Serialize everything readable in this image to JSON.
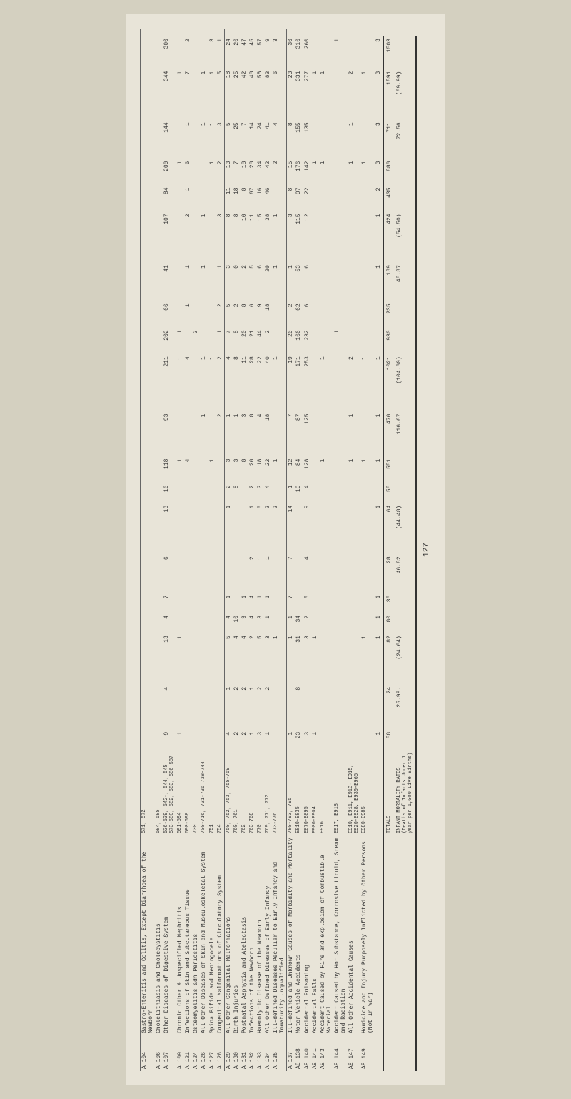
{
  "page_number": "127",
  "rows": [
    {
      "code": "A 104",
      "label": "Gastro-Enteritis and Colitis, Except Diarrhoea of the Newborn",
      "icd": "571, 572",
      "vals": [
        "",
        "",
        "",
        "",
        "",
        "",
        "",
        "",
        "",
        "",
        "",
        "",
        "",
        "",
        "",
        "",
        "",
        "",
        "",
        "",
        ""
      ]
    },
    {
      "code": "A 106",
      "label": "Cholelithiasis and Cholecystitis",
      "icd": "584, 585",
      "vals": [
        "",
        "",
        "",
        "",
        "",
        "",
        "",
        "",
        "",
        "",
        "",
        "",
        "",
        "",
        "",
        "",
        "",
        "",
        "",
        "",
        ""
      ]
    },
    {
      "code": "A 107",
      "label": "Other Diseases of Digestive System",
      "icd": "536-539, 542-, 544, 545 573-580, 582, 583, 586 587",
      "vals": [
        "9",
        "4",
        "13",
        "4",
        "7",
        "6",
        "13",
        "10",
        "118",
        "93",
        "211",
        "202",
        "66",
        "41",
        "107",
        "84",
        "200",
        "144",
        "344",
        "300",
        ""
      ]
    },
    {
      "code": "A 109",
      "label": "Chronic Other & Unspecified Nephritis",
      "icd": "591-594",
      "vals": [
        "1",
        "",
        "1",
        "",
        "",
        "",
        "",
        "",
        "1",
        "",
        "1",
        "1",
        "",
        "",
        "",
        "",
        "1",
        "",
        "1",
        "",
        ""
      ]
    },
    {
      "code": "A 121",
      "label": "Infections of Skin and Subcutaneous Tissue",
      "icd": "690-698",
      "vals": [
        "",
        "",
        "",
        "",
        "",
        "",
        "",
        "",
        "4",
        "",
        "4",
        "",
        "1",
        "1",
        "2",
        "1",
        "6",
        "1",
        "7",
        "2",
        ""
      ]
    },
    {
      "code": "A 124",
      "label": "Osteomyelitis adn Periostitis",
      "icd": "730",
      "vals": [
        "",
        "",
        "",
        "",
        "",
        "",
        "",
        "",
        "",
        "",
        "",
        "3",
        "",
        "",
        "",
        "",
        "",
        "",
        "",
        "",
        ""
      ]
    },
    {
      "code": "A 126",
      "label": "All Other Diseases of Skin and Musculoskeletal System",
      "icd": "700-716, 731-736 738-744",
      "vals": [
        "",
        "",
        "",
        "",
        "",
        "",
        "",
        "",
        "",
        "1",
        "1",
        "",
        "",
        "1",
        "1",
        "",
        "",
        "1",
        "1",
        "",
        ""
      ]
    },
    {
      "code": "A 127",
      "label": "Spina Bifida and Meningocele",
      "icd": "751",
      "vals": [
        "",
        "",
        "",
        "",
        "",
        "",
        "",
        "",
        "1",
        "",
        "1",
        "",
        "",
        "",
        "",
        "",
        "1",
        "1",
        "1",
        "3",
        ""
      ]
    },
    {
      "code": "A 128",
      "label": "Congenital Malformations of Circulatory System",
      "icd": "754",
      "vals": [
        "",
        "",
        "",
        "",
        "",
        "",
        "",
        "",
        "",
        "2",
        "2",
        "1",
        "2",
        "1",
        "3",
        "",
        "2",
        "3",
        "5",
        "1",
        ""
      ]
    },
    {
      "code": "A 129",
      "label": "All Other Congenital Malformations",
      "icd": "750, 752, 753, 755-759",
      "vals": [
        "4",
        "1",
        "5",
        "4",
        "1",
        "",
        "1",
        "2",
        "3",
        "1",
        "4",
        "7",
        "5",
        "3",
        "8",
        "11",
        "13",
        "5",
        "18",
        "24",
        ""
      ]
    },
    {
      "code": "A 130",
      "label": "Birth Injuries",
      "icd": "760, 761",
      "vals": [
        "2",
        "2",
        "4",
        "10",
        "",
        "",
        "",
        "8",
        "3",
        "1",
        "8",
        "8",
        "2",
        "0",
        "8",
        "18",
        "7",
        "25",
        "25",
        "26",
        ""
      ]
    },
    {
      "code": "A 131",
      "label": "Postnatal Asphyxia and Atelectasis",
      "icd": "762",
      "vals": [
        "2",
        "2",
        "4",
        "9",
        "1",
        "",
        "",
        "",
        "8",
        "3",
        "11",
        "20",
        "8",
        "2",
        "10",
        "8",
        "18",
        "7",
        "42",
        "47",
        ""
      ]
    },
    {
      "code": "A 132",
      "label": "Infections of the Newborn",
      "icd": "763-768",
      "vals": [
        "1",
        "1",
        "2",
        "4",
        "4",
        "2",
        "1",
        "2",
        "20",
        "8",
        "28",
        "21",
        "6",
        "5",
        "11",
        "67",
        "28",
        "14",
        "48",
        "45",
        ""
      ]
    },
    {
      "code": "A 133",
      "label": "Haemolytic Disease of the Newborn",
      "icd": "770",
      "vals": [
        "3",
        "2",
        "5",
        "3",
        "1",
        "1",
        "6",
        "3",
        "18",
        "4",
        "22",
        "44",
        "9",
        "6",
        "15",
        "16",
        "34",
        "24",
        "58",
        "57",
        ""
      ]
    },
    {
      "code": "A 134",
      "label": "All Other Defined Diseases of Early Infancy",
      "icd": "769, 771, 772",
      "vals": [
        "1",
        "2",
        "3",
        "1",
        "1",
        "1",
        "2",
        "4",
        "22",
        "18",
        "40",
        "2",
        "18",
        "20",
        "38",
        "46",
        "42",
        "41",
        "83",
        "9",
        ""
      ]
    },
    {
      "code": "A 135",
      "label": "Ill-defined Diseases Peculiar to Early Infancy and Immaturity Unqualified",
      "icd": "773-776",
      "vals": [
        "",
        "",
        "1",
        "",
        "",
        "",
        "2",
        "",
        "1",
        "",
        "1",
        "",
        "",
        "1",
        "1",
        "",
        "2",
        "4",
        "6",
        "3",
        ""
      ]
    },
    {
      "code": "A 137",
      "label": "Ill-defined and Unknown Causes of Morbidity and Mortality",
      "icd": "780-793, 795",
      "vals": [
        "1",
        "",
        "1",
        "1",
        "7",
        "7",
        "14",
        "1",
        "12",
        "7",
        "19",
        "20",
        "2",
        "1",
        "3",
        "8",
        "15",
        "8",
        "23",
        "30",
        ""
      ]
    },
    {
      "code": "AE 138",
      "label": "Motor Vehicle Accidents",
      "icd": "E810-E835",
      "vals": [
        "23",
        "8",
        "31",
        "34",
        "",
        "",
        "",
        "19",
        "84",
        "87",
        "171",
        "166",
        "62",
        "53",
        "115",
        "97",
        "176",
        "155",
        "331",
        "316",
        ""
      ]
    },
    {
      "code": "AE 140",
      "label": "Accidental Poisoning",
      "icd": "E870-E895",
      "vals": [
        "3",
        "",
        "3",
        "2",
        "5",
        "4",
        "9",
        "4",
        "128",
        "125",
        "253",
        "232",
        "6",
        "6",
        "12",
        "22",
        "142",
        "135",
        "277",
        "260",
        ""
      ]
    },
    {
      "code": "AE 141",
      "label": "Accidental Falls",
      "icd": "E900-E904",
      "vals": [
        "1",
        "",
        "1",
        "",
        "",
        "",
        "",
        "",
        "",
        "",
        "",
        "",
        "",
        "",
        "",
        "",
        "1",
        "",
        "1",
        "",
        ""
      ]
    },
    {
      "code": "AE 143",
      "label": "Accident Caused by Fire and explosion of Combustible Material",
      "icd": "E916",
      "vals": [
        "",
        "",
        "",
        "",
        "",
        "",
        "",
        "",
        "1",
        "",
        "1",
        "",
        "",
        "",
        "",
        "",
        "1",
        "",
        "1",
        "",
        ""
      ]
    },
    {
      "code": "AE 144",
      "label": "Accident Caused by Hot Substance, Corrosive Liquid, Steam and Radiation",
      "icd": "E917, E918",
      "vals": [
        "",
        "",
        "",
        "",
        "",
        "",
        "",
        "",
        "",
        "",
        "",
        "1",
        "",
        "",
        "",
        "",
        "",
        "",
        "",
        "1",
        ""
      ]
    },
    {
      "code": "AE 147",
      "label": "All Other Accidental Causes",
      "icd": "E910, E911, E913- E915, E920-E928, E930-E965",
      "vals": [
        "",
        "",
        "",
        "",
        "",
        "",
        "",
        "",
        "1",
        "1",
        "2",
        "",
        "",
        "",
        "",
        "",
        "1",
        "1",
        "2",
        "",
        ""
      ]
    },
    {
      "code": "AE 149",
      "label": "Homicide and Injury Purposely Inflicted by Other Persons (Not in War)",
      "icd": "E980-E985",
      "vals": [
        "",
        "",
        "1",
        "",
        "",
        "",
        "",
        "",
        "1",
        "",
        "1",
        "",
        "",
        "",
        "",
        "",
        "1",
        "",
        "1",
        "",
        ""
      ]
    },
    {
      "code": "",
      "label": "",
      "icd": "",
      "vals": [
        "1",
        "",
        "1",
        "1",
        "1",
        "",
        "1",
        "",
        "1",
        "1",
        "1",
        "",
        "",
        "1",
        "1",
        "2",
        "3",
        "3",
        "3",
        "3",
        ""
      ]
    }
  ],
  "header_vals": [
    "",
    "",
    "",
    "",
    "",
    "",
    "",
    "",
    "",
    "",
    "",
    "",
    "",
    "",
    "",
    "",
    "",
    "",
    "",
    "",
    ""
  ],
  "totals": {
    "label": "TOTALS",
    "vals": [
      "58",
      "24",
      "82",
      "80",
      "36",
      "28",
      "64",
      "58",
      "551",
      "470",
      "1021",
      "930",
      "235",
      "189",
      "424",
      "435",
      "880",
      "711",
      "1591",
      "1503"
    ]
  },
  "rates": {
    "label": "INFANT MORTALITY RATES:\n(Deaths of Infants Under 1 year per 1,000 Live Births)",
    "vals": [
      "",
      "25.99.",
      "(24.64)",
      "",
      "",
      "46.82",
      "(44.48)",
      "",
      "",
      "116.67",
      "(104.60)",
      "",
      "",
      "48.87",
      "(54.50)",
      "",
      "",
      "72.56",
      "(69.99)",
      ""
    ]
  },
  "colors": {
    "bg": "#d4d0c0",
    "paper": "#e8e4d8",
    "text": "#333333",
    "border": "#666666"
  }
}
